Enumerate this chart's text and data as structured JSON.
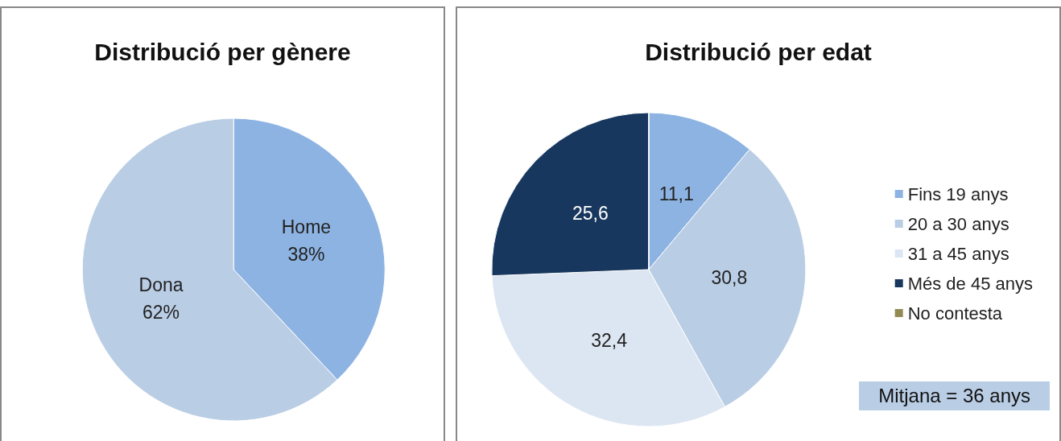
{
  "chart_data": [
    {
      "type": "pie",
      "title": "Distribució per gènere",
      "categories": [
        "Home",
        "Dona"
      ],
      "values": [
        38,
        62
      ],
      "colors": [
        "#8db3e2",
        "#b9cde5"
      ],
      "value_labels": [
        "38%",
        "62%"
      ],
      "legend": false
    },
    {
      "type": "pie",
      "title": "Distribució per edat",
      "categories": [
        "Fins 19 anys",
        "20 a 30 anys",
        "31 a 45 anys",
        "Més de 45 anys",
        "No contesta"
      ],
      "values": [
        11.1,
        30.8,
        32.4,
        25.6,
        0
      ],
      "colors": [
        "#8db3e2",
        "#b9cde5",
        "#dce6f2",
        "#17375e",
        "#948a54"
      ],
      "value_labels": [
        "11,1",
        "30,8",
        "32,4",
        "25,6",
        null
      ],
      "legend": "right",
      "annotations": [
        "Mitjana = 36 anys"
      ]
    }
  ]
}
